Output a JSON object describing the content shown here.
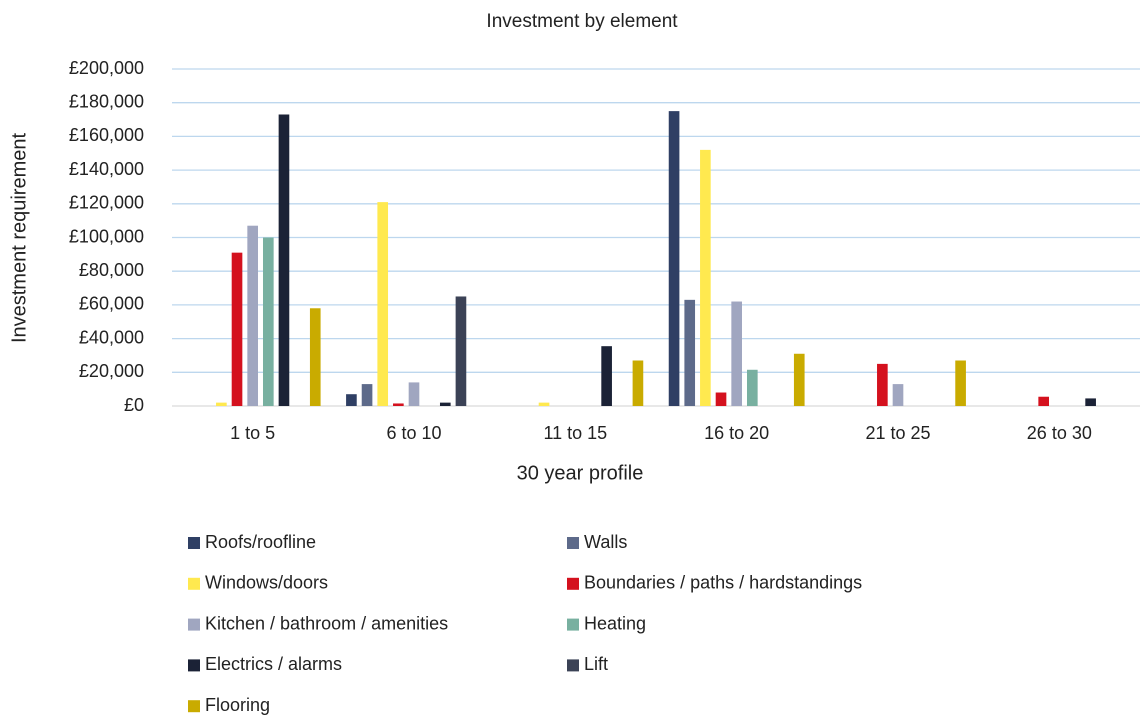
{
  "chart_data": {
    "type": "bar",
    "title": "Investment by element",
    "x_label": "30 year profile",
    "y_label": "Investment requirement",
    "categories": [
      "1 to 5",
      "6 to 10",
      "11 to 15",
      "16 to 20",
      "21 to 25",
      "26 to 30"
    ],
    "series": [
      {
        "name": "Roofs/roofline",
        "color": "#2f3f64",
        "values": [
          0,
          7000,
          0,
          175000,
          0,
          0
        ]
      },
      {
        "name": "Walls",
        "color": "#5d6a8a",
        "values": [
          0,
          13000,
          0,
          63000,
          0,
          0
        ]
      },
      {
        "name": "Windows/doors",
        "color": "#ffe94f",
        "values": [
          2000,
          121000,
          2000,
          152000,
          0,
          0
        ]
      },
      {
        "name": "Boundaries / paths / hardstandings",
        "color": "#d4111e",
        "values": [
          91000,
          1500,
          0,
          8000,
          25000,
          5500
        ]
      },
      {
        "name": "Kitchen / bathroom / amenities",
        "color": "#a0a6c0",
        "values": [
          107000,
          14000,
          0,
          62000,
          13000,
          0
        ]
      },
      {
        "name": "Heating",
        "color": "#78b0a0",
        "values": [
          100000,
          0,
          0,
          21500,
          0,
          0
        ]
      },
      {
        "name": "Electrics / alarms",
        "color": "#1b2236",
        "values": [
          173000,
          2000,
          35500,
          0,
          0,
          4500
        ]
      },
      {
        "name": "Lift",
        "color": "#3b4256",
        "values": [
          0,
          65000,
          0,
          0,
          0,
          0
        ]
      },
      {
        "name": "Flooring",
        "color": "#c9ab00",
        "values": [
          58000,
          0,
          27000,
          31000,
          27000,
          0
        ]
      }
    ],
    "ylim": [
      0,
      200000
    ],
    "yticks": [
      {
        "value": 0,
        "label": "£0"
      },
      {
        "value": 20000,
        "label": "£20,000"
      },
      {
        "value": 40000,
        "label": "£40,000"
      },
      {
        "value": 60000,
        "label": "£60,000"
      },
      {
        "value": 80000,
        "label": "£80,000"
      },
      {
        "value": 100000,
        "label": "£100,000"
      },
      {
        "value": 120000,
        "label": "£120,000"
      },
      {
        "value": 140000,
        "label": "£140,000"
      },
      {
        "value": 160000,
        "label": "£160,000"
      },
      {
        "value": 180000,
        "label": "£180,000"
      },
      {
        "value": 200000,
        "label": "£200,000"
      }
    ],
    "grid": true,
    "legend": "bottom"
  }
}
